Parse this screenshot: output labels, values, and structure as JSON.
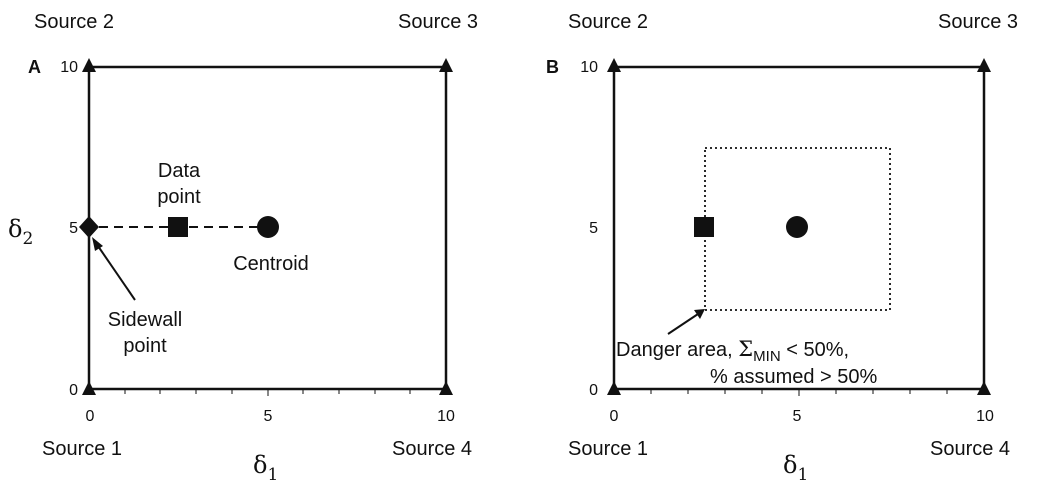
{
  "panels": [
    {
      "id": "A",
      "source_top_left": "Source 2",
      "source_top_right": "Source 3",
      "source_bottom_left": "Source 1",
      "source_bottom_right": "Source 4",
      "x_symbol": "δ",
      "x_sub": "1",
      "y_symbol": "δ",
      "y_sub": "2",
      "ticks_x": [
        "0",
        "5",
        "10"
      ],
      "ticks_y": [
        "0",
        "5",
        "10"
      ],
      "data_point_label_line1": "Data",
      "data_point_label_line2": "point",
      "centroid_label": "Centroid",
      "sidewall_label_line1": "Sidewall",
      "sidewall_label_line2": "point",
      "data_point": [
        2.5,
        5
      ],
      "centroid": [
        5,
        5
      ],
      "sidewall_point": [
        0,
        5
      ]
    },
    {
      "id": "B",
      "source_top_left": "Source 2",
      "source_top_right": "Source 3",
      "source_bottom_left": "Source 1",
      "source_bottom_right": "Source 4",
      "x_symbol": "δ",
      "x_sub": "1",
      "ticks_x": [
        "0",
        "5",
        "10"
      ],
      "ticks_y": [
        "0",
        "5",
        "10"
      ],
      "danger_line1_prefix": "Danger area, ",
      "danger_sigma": "Σ",
      "danger_sigma_sub": "MIN",
      "danger_line1_suffix": " < 50%,",
      "danger_line2": "% assumed > 50%",
      "data_point": [
        2.5,
        5
      ],
      "centroid": [
        5,
        5
      ],
      "danger_area": {
        "x": [
          2.5,
          7.5
        ],
        "y": [
          2.5,
          7.5
        ]
      }
    }
  ],
  "colors": {
    "ink": "#111111"
  }
}
